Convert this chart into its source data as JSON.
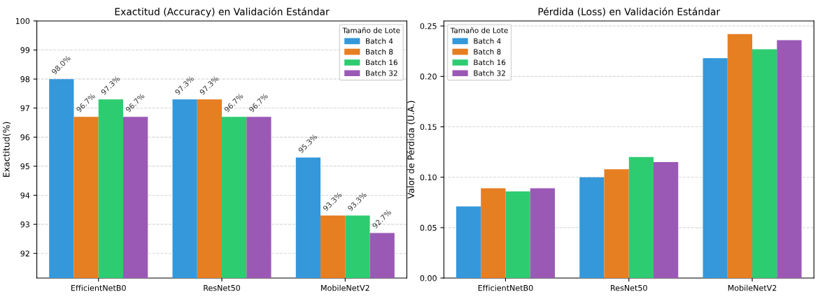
{
  "chart_data": [
    {
      "type": "bar",
      "title": "Exactitud (Accuracy) en Validación Estándar",
      "ylabel": "Exactitud(%)",
      "legend_title": "Tamaño de Lote",
      "legend": "top right",
      "grid": "y",
      "categories": [
        "EfficientNetB0",
        "ResNet50",
        "MobileNetV2"
      ],
      "ylim": [
        91.15,
        100
      ],
      "yticks": [
        92,
        93,
        94,
        95,
        96,
        97,
        98,
        99,
        100
      ],
      "series": [
        {
          "name": "Batch 4",
          "color": "#3498db",
          "values": [
            98.0,
            97.3,
            95.3
          ],
          "value_labels": [
            "98.0%",
            "97.3%",
            "95.3%"
          ]
        },
        {
          "name": "Batch 8",
          "color": "#e67e22",
          "values": [
            96.7,
            97.3,
            93.3
          ],
          "value_labels": [
            "96.7%",
            "97.3%",
            "93.3%"
          ]
        },
        {
          "name": "Batch 16",
          "color": "#2ecc71",
          "values": [
            97.3,
            96.7,
            93.3
          ],
          "value_labels": [
            "97.3%",
            "96.7%",
            "93.3%"
          ]
        },
        {
          "name": "Batch 32",
          "color": "#9b59b6",
          "values": [
            96.7,
            96.7,
            92.7
          ],
          "value_labels": [
            "96.7%",
            "96.7%",
            "92.7%"
          ]
        }
      ]
    },
    {
      "type": "bar",
      "title": "Pérdida (Loss) en Validación Estándar",
      "ylabel": "Valor de Pérdida (U.A.)",
      "legend_title": "Tamaño de Lote",
      "legend": "top left",
      "grid": "y",
      "categories": [
        "EfficientNetB0",
        "ResNet50",
        "MobileNetV2"
      ],
      "ylim": [
        0,
        0.255
      ],
      "yticks": [
        {
          "value": 0,
          "label": "0.00"
        },
        {
          "value": 0.05,
          "label": "0.05"
        },
        {
          "value": 0.1,
          "label": "0.10"
        },
        {
          "value": 0.15,
          "label": "0.15"
        },
        {
          "value": 0.2,
          "label": "0.20"
        },
        {
          "value": 0.25,
          "label": "0.25"
        }
      ],
      "series": [
        {
          "name": "Batch 4",
          "color": "#3498db",
          "values": [
            0.071,
            0.1,
            0.218
          ]
        },
        {
          "name": "Batch 8",
          "color": "#e67e22",
          "values": [
            0.089,
            0.108,
            0.242
          ]
        },
        {
          "name": "Batch 16",
          "color": "#2ecc71",
          "values": [
            0.086,
            0.12,
            0.227
          ]
        },
        {
          "name": "Batch 32",
          "color": "#9b59b6",
          "values": [
            0.089,
            0.115,
            0.236
          ]
        }
      ]
    }
  ]
}
